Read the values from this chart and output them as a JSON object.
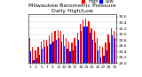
{
  "title": "Milwaukee Barometric Pressure",
  "subtitle": "Daily High/Low",
  "background_color": "#ffffff",
  "bar_width": 0.4,
  "ylim": [
    29.0,
    30.7
  ],
  "yticks": [
    29.0,
    29.2,
    29.4,
    29.6,
    29.8,
    30.0,
    30.2,
    30.4,
    30.6
  ],
  "days": [
    1,
    2,
    3,
    4,
    5,
    6,
    7,
    8,
    9,
    10,
    11,
    12,
    13,
    14,
    15,
    16,
    17,
    18,
    19,
    20,
    21,
    22,
    23,
    24,
    25,
    26,
    27,
    28,
    29,
    30,
    31
  ],
  "high": [
    29.85,
    29.55,
    29.45,
    29.55,
    29.75,
    29.8,
    29.8,
    29.95,
    30.05,
    30.1,
    30.15,
    30.1,
    30.0,
    29.85,
    29.75,
    29.7,
    29.85,
    30.05,
    30.35,
    30.5,
    30.55,
    30.45,
    30.2,
    30.1,
    29.85,
    29.6,
    29.55,
    29.7,
    30.0,
    30.2,
    30.1
  ],
  "low": [
    29.4,
    29.1,
    29.15,
    29.3,
    29.5,
    29.55,
    29.6,
    29.65,
    29.75,
    29.8,
    29.85,
    29.75,
    29.6,
    29.5,
    29.4,
    29.45,
    29.6,
    29.8,
    30.1,
    30.25,
    30.25,
    30.05,
    29.8,
    29.7,
    29.45,
    29.2,
    29.25,
    29.45,
    29.7,
    29.95,
    29.85
  ],
  "high_color": "#ff0000",
  "low_color": "#0000ff",
  "grid_color": "#bbbbbb",
  "title_fontsize": 4.5,
  "tick_fontsize": 3.2,
  "legend_fontsize": 3.5
}
